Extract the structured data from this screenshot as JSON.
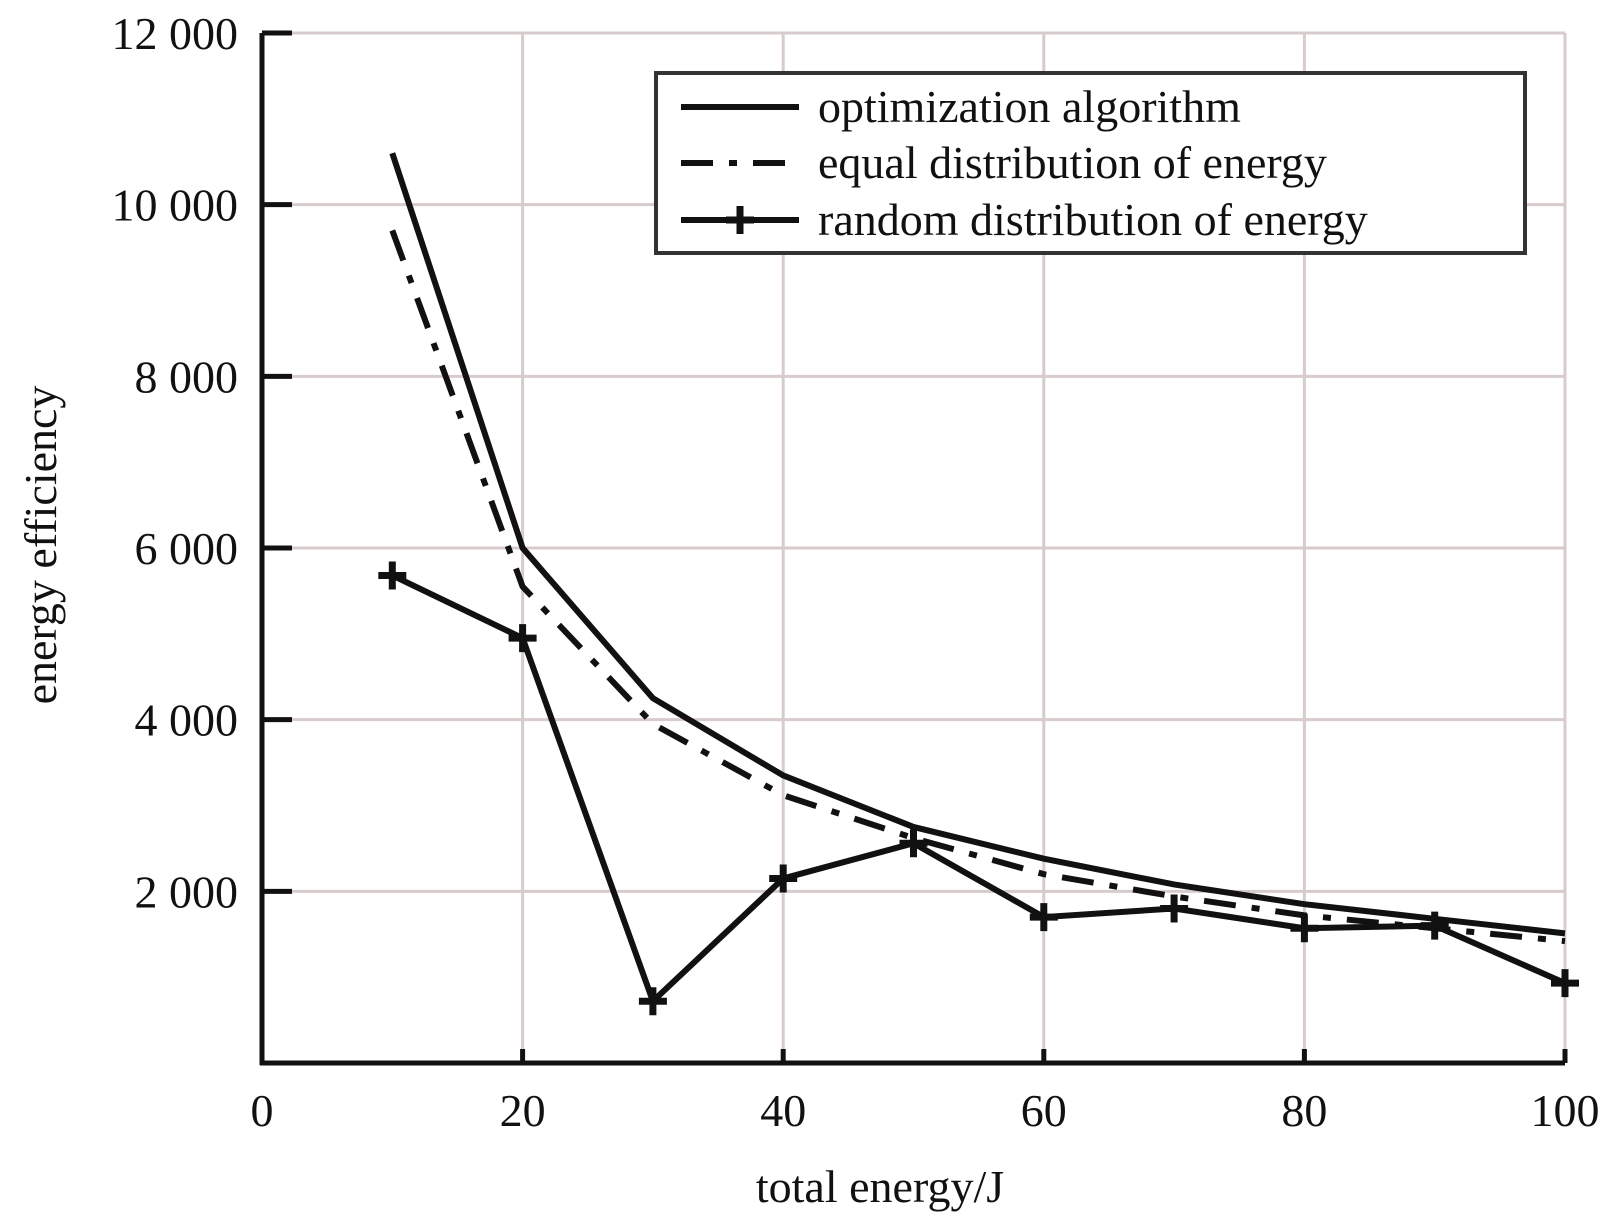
{
  "chart_data": {
    "type": "line",
    "xlabel": "total energy/J",
    "ylabel": "energy efficiency",
    "xlim": [
      0,
      100
    ],
    "ylim": [
      0,
      12000
    ],
    "x_ticks": [
      0,
      20,
      40,
      60,
      80,
      100
    ],
    "x_tick_labels": [
      "0",
      "20",
      "40",
      "60",
      "80",
      "100"
    ],
    "y_ticks": [
      2000,
      4000,
      6000,
      8000,
      10000,
      12000
    ],
    "y_tick_labels": [
      "2 000",
      "4 000",
      "6 000",
      "8 000",
      "10 000",
      "12 000"
    ],
    "grid": true,
    "legend_position": "top-right",
    "x": [
      10,
      20,
      30,
      40,
      50,
      60,
      70,
      80,
      90,
      100
    ],
    "series": [
      {
        "name": "optimization algorithm",
        "style": "solid",
        "values": [
          10600,
          6000,
          4250,
          3350,
          2750,
          2380,
          2080,
          1850,
          1680,
          1510
        ]
      },
      {
        "name": "equal distribution of energy",
        "style": "dash-dot",
        "values": [
          9700,
          5550,
          3950,
          3120,
          2620,
          2200,
          1940,
          1720,
          1570,
          1420
        ]
      },
      {
        "name": "random distribution of energy",
        "style": "solid-plus",
        "values": [
          5680,
          4950,
          720,
          2150,
          2560,
          1700,
          1800,
          1570,
          1600,
          930
        ]
      }
    ],
    "colors": {
      "line": "#111111",
      "grid": "#d7cccb",
      "background": "#ffffff"
    }
  }
}
